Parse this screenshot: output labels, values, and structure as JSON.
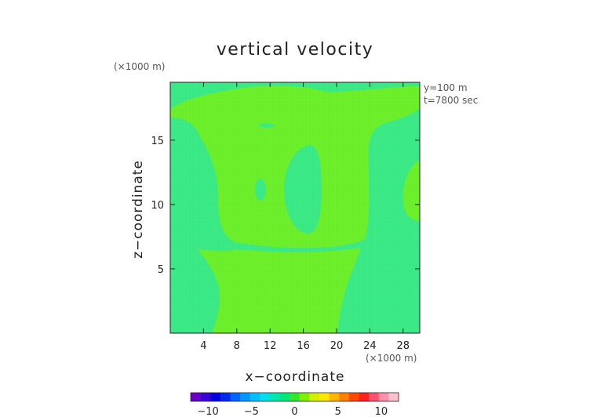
{
  "chart_data": {
    "type": "heatmap",
    "title": "vertical velocity",
    "xlabel": "x−coordinate",
    "ylabel": "z−coordinate",
    "x_unit": "(×1000 m)",
    "y_unit": "(×1000 m)",
    "annotations": [
      "y=100 m",
      "t=7800 sec"
    ],
    "xlim": [
      0,
      30
    ],
    "ylim": [
      0,
      19.5
    ],
    "x_ticks": [
      4,
      8,
      12,
      16,
      20,
      24,
      28
    ],
    "y_ticks": [
      5,
      10,
      15
    ],
    "x_tick_labels": [
      "4",
      "8",
      "12",
      "16",
      "20",
      "24",
      "28"
    ],
    "y_tick_labels": [
      "5",
      "10",
      "15"
    ],
    "colorbar": {
      "range": [
        -12,
        12
      ],
      "ticks": [
        -10,
        -5,
        0,
        5,
        10
      ],
      "tick_labels": [
        "−10",
        "−5",
        "0",
        "5",
        "10"
      ],
      "colors": [
        "#6a00c8",
        "#3c00d8",
        "#0000e0",
        "#0028f0",
        "#0064ff",
        "#0096ff",
        "#00c0ff",
        "#00e0e8",
        "#00e8b0",
        "#00e878",
        "#30e830",
        "#80f000",
        "#d0f000",
        "#ffe600",
        "#ffb400",
        "#ff8000",
        "#ff4800",
        "#ff2020",
        "#ff5070",
        "#ff90a8",
        "#ffc0d0"
      ]
    },
    "field": {
      "background_level": 0.5,
      "background_color": "#33e880",
      "positive_color": "#66ee22",
      "contour_level": 1.5,
      "note": "Weak updraft region (~1-2 m/s) over central and upper domain; remaining field near zero."
    }
  }
}
